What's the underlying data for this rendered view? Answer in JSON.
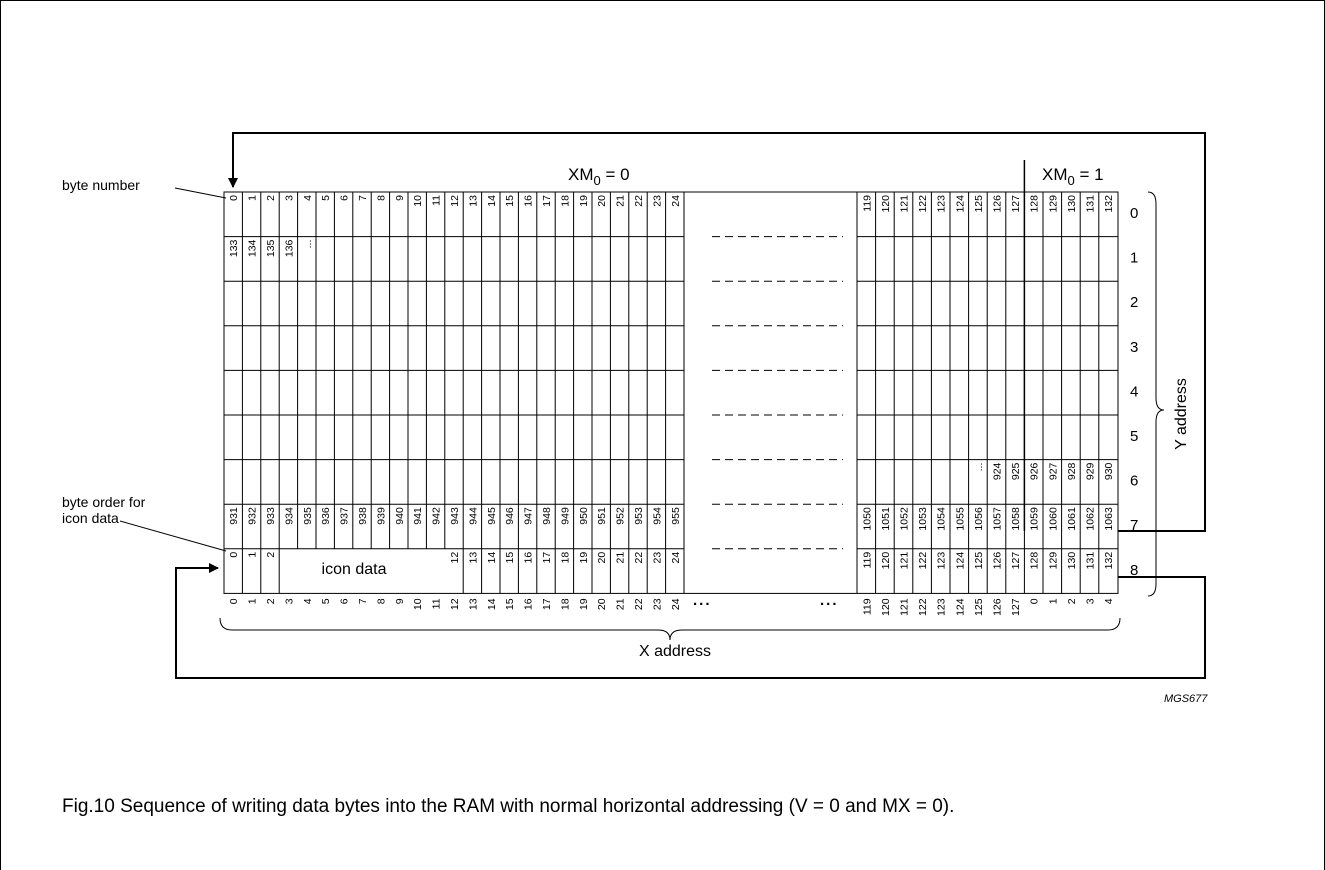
{
  "figure": {
    "xm0_left": {
      "main": "XM",
      "sub": "0",
      "rest": " = 0"
    },
    "xm0_right": {
      "main": "XM",
      "sub": "0",
      "rest": " = 1"
    },
    "byte_number_label": "byte number",
    "byte_order_label_line1": "byte order for",
    "byte_order_label_line2": "icon data",
    "icon_data_label": "icon data",
    "x_address_label": "X address",
    "y_address_label": "Y address",
    "ellipsis": "...",
    "figure_code": "MGS677",
    "caption": "Fig.10  Sequence of writing data bytes into the RAM with normal horizontal addressing (V = 0 and MX = 0)."
  },
  "y_addresses": [
    "0",
    "1",
    "2",
    "3",
    "4",
    "5",
    "6",
    "7",
    "8"
  ],
  "rows": {
    "row0_left": [
      "0",
      "1",
      "2",
      "3",
      "4",
      "5",
      "6",
      "7",
      "8",
      "9",
      "10",
      "11",
      "12",
      "13",
      "14",
      "15",
      "16",
      "17",
      "18",
      "19",
      "20",
      "21",
      "22",
      "23",
      "24"
    ],
    "row0_right": [
      "119",
      "120",
      "121",
      "122",
      "123",
      "124",
      "125",
      "126",
      "127",
      "128",
      "129",
      "130",
      "131",
      "132"
    ],
    "row1_left": [
      "133",
      "134",
      "135",
      "136",
      "..."
    ],
    "row6_right": [
      "...",
      "924",
      "925",
      "926",
      "927",
      "928",
      "929",
      "930"
    ],
    "row7_left": [
      "931",
      "932",
      "933",
      "934",
      "935",
      "936",
      "937",
      "938",
      "939",
      "940",
      "941",
      "942",
      "943",
      "944",
      "945",
      "946",
      "947",
      "948",
      "949",
      "950",
      "951",
      "952",
      "953",
      "954",
      "955"
    ],
    "row7_right": [
      "1050",
      "1051",
      "1052",
      "1053",
      "1054",
      "1055",
      "1056",
      "1057",
      "1058",
      "1059",
      "1060",
      "1061",
      "1062",
      "1063"
    ],
    "row8_left": [
      "0",
      "1",
      "2"
    ],
    "row8_left_after_icon": [
      "12",
      "13",
      "14",
      "15",
      "16",
      "17",
      "18",
      "19",
      "20",
      "21",
      "22",
      "23",
      "24"
    ],
    "row8_right": [
      "119",
      "120",
      "121",
      "122",
      "123",
      "124",
      "125",
      "126",
      "127",
      "128",
      "129",
      "130",
      "131",
      "132"
    ]
  },
  "x_addresses": {
    "left": [
      "0",
      "1",
      "2",
      "3",
      "4",
      "5",
      "6",
      "7",
      "8",
      "9",
      "10",
      "11",
      "12",
      "13",
      "14",
      "15",
      "16",
      "17",
      "18",
      "19",
      "20",
      "21",
      "22",
      "23",
      "24"
    ],
    "right_main": [
      "119",
      "120",
      "121",
      "122",
      "123",
      "124",
      "125",
      "126",
      "127"
    ],
    "right_icon": [
      "0",
      "1",
      "2",
      "3",
      "4"
    ]
  }
}
